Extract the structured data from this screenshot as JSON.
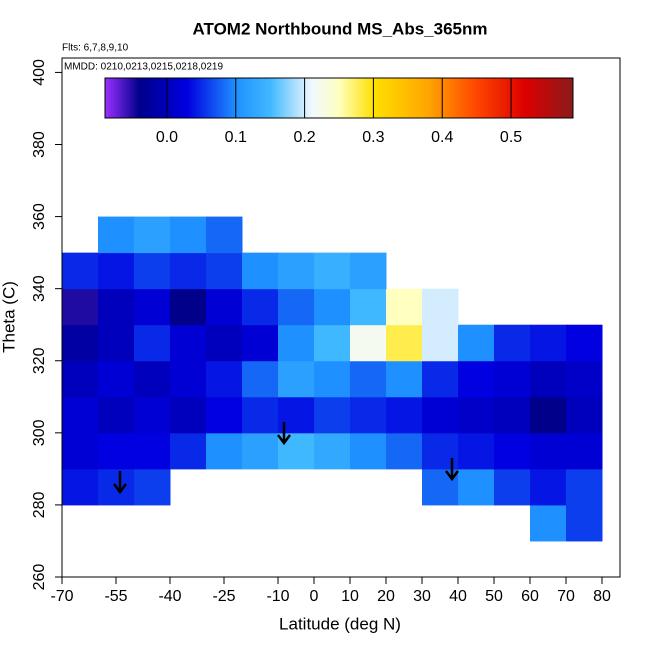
{
  "chart_data": {
    "type": "heatmap",
    "title": "ATOM2 Northbound MS_Abs_365nm",
    "subtitle": "Flts: 6,7,8,9,10",
    "annotation": "MMDD: 0210,0213,0215,0218,0219",
    "x_label": "Latitude (deg N)",
    "y_label": "Theta (C)",
    "xlim": [
      -70,
      85
    ],
    "ylim": [
      260,
      404
    ],
    "xticks": [
      -70,
      -55,
      -40,
      -25,
      -10,
      0,
      10,
      20,
      30,
      40,
      50,
      60,
      70,
      80
    ],
    "yticks": [
      260,
      280,
      300,
      320,
      340,
      360,
      380,
      400
    ],
    "x": [
      -65,
      -55,
      -45,
      -35,
      -25,
      -15,
      -5,
      5,
      15,
      25,
      35,
      45,
      55,
      65,
      75
    ],
    "y": [
      275,
      285,
      295,
      305,
      315,
      325,
      335,
      345,
      355
    ],
    "z": [
      [
        null,
        null,
        null,
        null,
        null,
        null,
        null,
        null,
        null,
        null,
        null,
        null,
        null,
        0.1,
        0.06
      ],
      [
        0.04,
        0.05,
        0.06,
        null,
        null,
        null,
        null,
        null,
        null,
        null,
        0.08,
        0.1,
        0.06,
        0.04,
        0.06
      ],
      [
        0.02,
        0.03,
        0.03,
        0.05,
        0.1,
        0.12,
        0.15,
        0.13,
        0.1,
        0.08,
        0.05,
        0.04,
        0.03,
        0.02,
        0.02
      ],
      [
        0.02,
        0.0,
        0.02,
        0.0,
        0.03,
        0.05,
        0.04,
        0.06,
        0.05,
        0.04,
        0.02,
        0.01,
        0.0,
        -0.04,
        0.0
      ],
      [
        0.0,
        0.02,
        0.0,
        0.02,
        0.04,
        0.08,
        0.12,
        0.1,
        0.08,
        0.1,
        0.05,
        0.03,
        0.02,
        0.0,
        0.01
      ],
      [
        -0.02,
        0.0,
        0.05,
        0.02,
        0.0,
        0.02,
        0.1,
        0.15,
        0.22,
        0.28,
        0.2,
        0.1,
        0.05,
        0.04,
        0.03
      ],
      [
        -0.05,
        0.0,
        0.02,
        -0.04,
        0.02,
        0.05,
        0.08,
        0.1,
        0.15,
        0.25,
        0.2,
        null,
        null,
        null,
        null
      ],
      [
        0.05,
        0.04,
        0.06,
        0.05,
        0.06,
        0.1,
        0.12,
        0.14,
        0.12,
        null,
        null,
        null,
        null,
        null,
        null
      ],
      [
        null,
        0.1,
        0.12,
        0.1,
        0.08,
        null,
        null,
        null,
        null,
        null,
        null,
        null,
        null,
        null,
        null
      ]
    ],
    "colorbar_lim": [
      -0.09,
      0.59
    ],
    "colorbar_ticks": [
      {
        "value": 0,
        "label": "0.0"
      },
      0.1,
      0.2,
      0.3,
      0.4,
      0.5
    ],
    "colorscale": [
      [
        -0.09,
        "#9b30ff"
      ],
      [
        -0.04,
        "#00008b"
      ],
      [
        0.03,
        "#0000e0"
      ],
      [
        0.1,
        "#1e90ff"
      ],
      [
        0.15,
        "#40b8ff"
      ],
      [
        0.21,
        "#f0f8ff"
      ],
      [
        0.25,
        "#ffffc0"
      ],
      [
        0.3,
        "#ffe000"
      ],
      [
        0.38,
        "#ffa500"
      ],
      [
        0.45,
        "#ff4500"
      ],
      [
        0.52,
        "#dd0000"
      ],
      [
        0.59,
        "#8b1a1a"
      ]
    ]
  }
}
